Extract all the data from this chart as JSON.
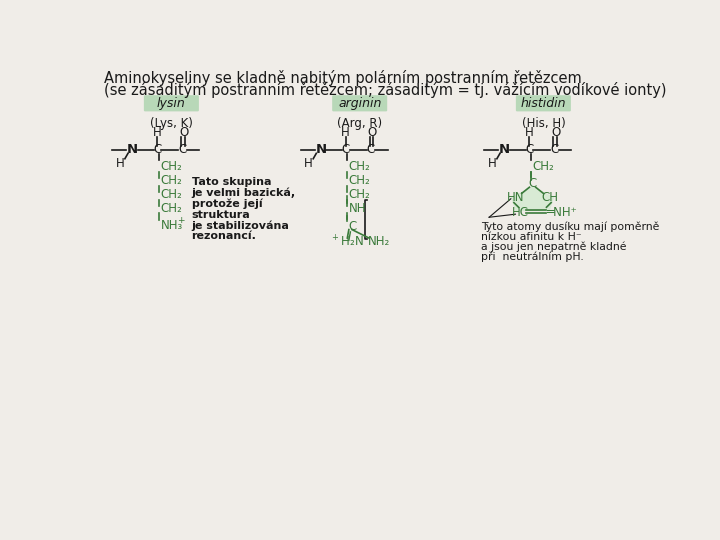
{
  "title_line1": "Aminokyseliny se kladně nabitým polárním postranním řetězcem",
  "title_line2": "(se zásaditým postranním řetězcem; zásaditým = tj. vážícím vodíkové ionty)",
  "bg_color": "#f0ede8",
  "text_color": "#1a1a1a",
  "green_color": "#3a7a3a",
  "label_bg": "#b8d8b8",
  "amino_acids": [
    "lysin",
    "arginin",
    "histidin"
  ],
  "abbrevs": [
    "(Lys, K)",
    "(Arg, R)",
    "(His, H)"
  ],
  "note1_lines": [
    "Tato skupina",
    "je velmi bazická,",
    "protože její",
    "struktura",
    "je stabilizována",
    "rezonancí."
  ],
  "note2_lines": [
    "Tyto atomy dusíku mají poměrně",
    "nízkou afinitu k H⁻",
    "a jsou jen nepatrně kladné",
    "při  neutrálním pH."
  ]
}
